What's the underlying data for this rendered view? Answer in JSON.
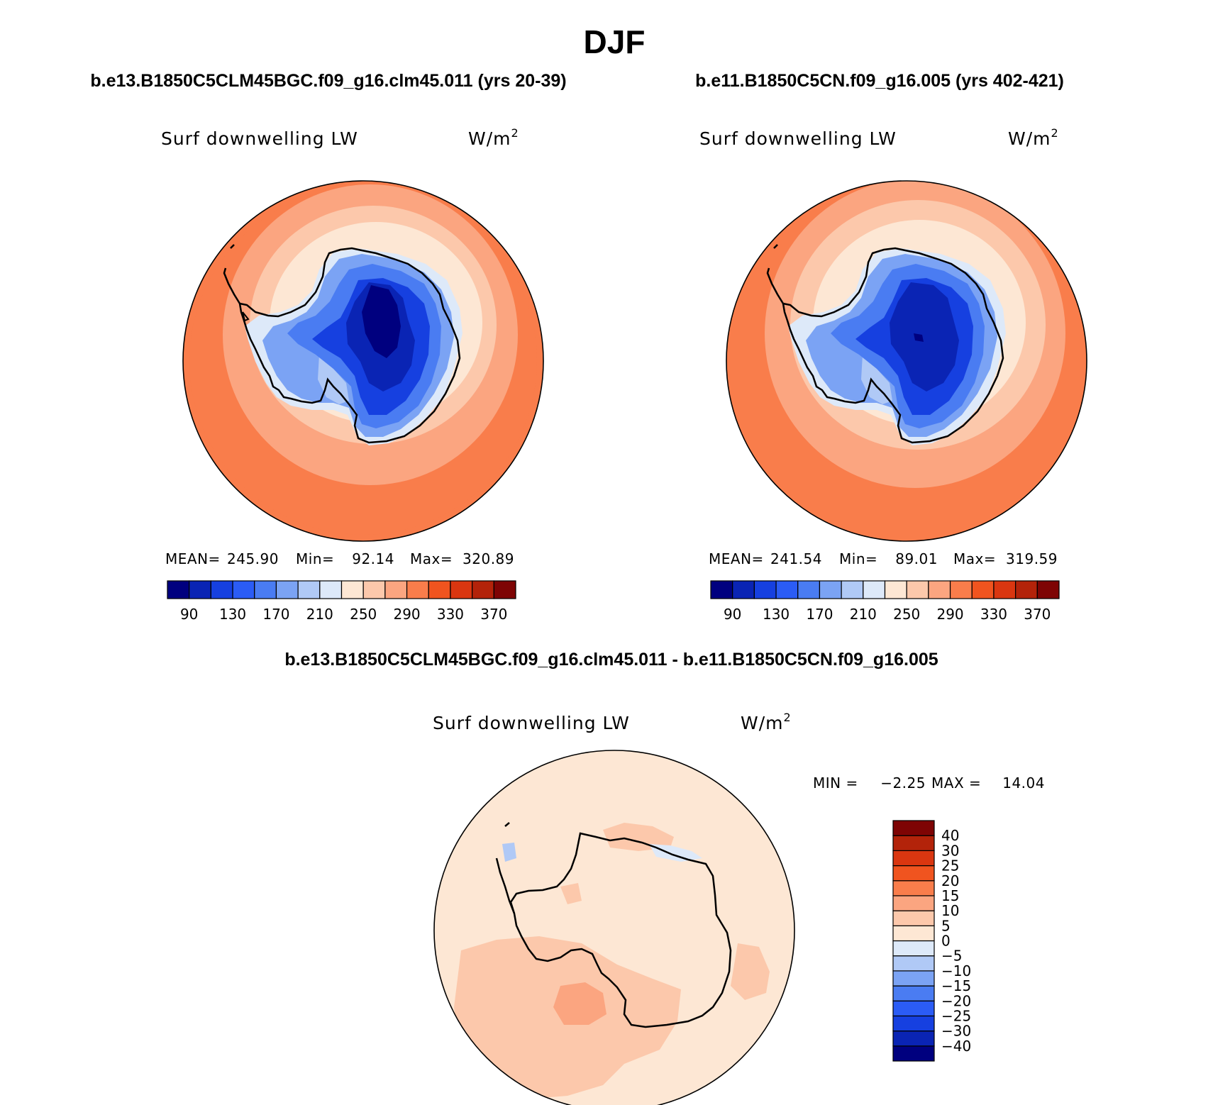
{
  "figure": {
    "title": "DJF"
  },
  "panels": [
    {
      "case_title": "b.e13.B1850C5CLM45BGC.f09_g16.clm45.011 (yrs 20-39)",
      "variable_label": "Surf downwelling LW",
      "units_base": "W/m",
      "units_exp": "2",
      "stats": {
        "mean_label": "MEAN=",
        "mean": "245.90",
        "min_label": "Min=",
        "min": "92.14",
        "max_label": "Max=",
        "max": "320.89"
      }
    },
    {
      "case_title": "b.e11.B1850C5CN.f09_g16.005 (yrs 402-421)",
      "variable_label": "Surf downwelling LW",
      "units_base": "W/m",
      "units_exp": "2",
      "stats": {
        "mean_label": "MEAN=",
        "mean": "241.54",
        "min_label": "Min=",
        "min": "89.01",
        "max_label": "Max=",
        "max": "319.59"
      }
    },
    {
      "case_title": "b.e13.B1850C5CLM45BGC.f09_g16.clm45.011 - b.e11.B1850C5CN.f09_g16.005",
      "variable_label": "Surf downwelling LW",
      "units_base": "W/m",
      "units_exp": "2",
      "stats": {
        "min_label": "MIN =",
        "min": "−2.25",
        "max_label": "MAX =",
        "max": "14.04"
      }
    }
  ],
  "chart_data": [
    {
      "type": "heatmap",
      "projection": "south-polar stereographic",
      "title": "b.e13.B1850C5CLM45BGC.f09_g16.clm45.011 (yrs 20-39)",
      "variable": "Surf downwelling LW",
      "units": "W/m2",
      "mean": 245.9,
      "min": 92.14,
      "max": 320.89,
      "colorbar": {
        "orientation": "horizontal",
        "levels": [
          90,
          110,
          130,
          150,
          170,
          190,
          210,
          230,
          250,
          270,
          290,
          310,
          330,
          350,
          370
        ],
        "tick_labels": [
          "90",
          "130",
          "170",
          "210",
          "250",
          "290",
          "330",
          "370"
        ],
        "colors": [
          "#00007f",
          "#0a24b4",
          "#1640e0",
          "#2b5cf5",
          "#4a7cf2",
          "#7ba3f4",
          "#b0c9f6",
          "#dde9f9",
          "#fde7d4",
          "#fcc8ab",
          "#fba580",
          "#f97d4b",
          "#f0541f",
          "#da3610",
          "#b3230a",
          "#7e0404"
        ]
      }
    },
    {
      "type": "heatmap",
      "projection": "south-polar stereographic",
      "title": "b.e11.B1850C5CN.f09_g16.005 (yrs 402-421)",
      "variable": "Surf downwelling LW",
      "units": "W/m2",
      "mean": 241.54,
      "min": 89.01,
      "max": 319.59,
      "colorbar": {
        "orientation": "horizontal",
        "levels": [
          90,
          110,
          130,
          150,
          170,
          190,
          210,
          230,
          250,
          270,
          290,
          310,
          330,
          350,
          370
        ],
        "tick_labels": [
          "90",
          "130",
          "170",
          "210",
          "250",
          "290",
          "330",
          "370"
        ],
        "colors": [
          "#00007f",
          "#0a24b4",
          "#1640e0",
          "#2b5cf5",
          "#4a7cf2",
          "#7ba3f4",
          "#b0c9f6",
          "#dde9f9",
          "#fde7d4",
          "#fcc8ab",
          "#fba580",
          "#f97d4b",
          "#f0541f",
          "#da3610",
          "#b3230a",
          "#7e0404"
        ]
      }
    },
    {
      "type": "heatmap",
      "projection": "south-polar stereographic",
      "title": "b.e13.B1850C5CLM45BGC.f09_g16.clm45.011 - b.e11.B1850C5CN.f09_g16.005",
      "variable": "Surf downwelling LW",
      "units": "W/m2",
      "min": -2.25,
      "max": 14.04,
      "colorbar": {
        "orientation": "vertical",
        "levels": [
          -40,
          -30,
          -25,
          -20,
          -15,
          -10,
          -5,
          0,
          5,
          10,
          15,
          20,
          25,
          30,
          40
        ],
        "tick_labels": [
          "−40",
          "−30",
          "−25",
          "−20",
          "−15",
          "−10",
          "−5",
          "0",
          "5",
          "10",
          "15",
          "20",
          "25",
          "30",
          "40"
        ],
        "colors": [
          "#00007f",
          "#0a24b4",
          "#1640e0",
          "#2b5cf5",
          "#4a7cf2",
          "#7ba3f4",
          "#b0c9f6",
          "#dde9f9",
          "#fde7d4",
          "#fcc8ab",
          "#fba580",
          "#f97d4b",
          "#f0541f",
          "#da3610",
          "#b3230a",
          "#7e0404"
        ]
      }
    }
  ]
}
